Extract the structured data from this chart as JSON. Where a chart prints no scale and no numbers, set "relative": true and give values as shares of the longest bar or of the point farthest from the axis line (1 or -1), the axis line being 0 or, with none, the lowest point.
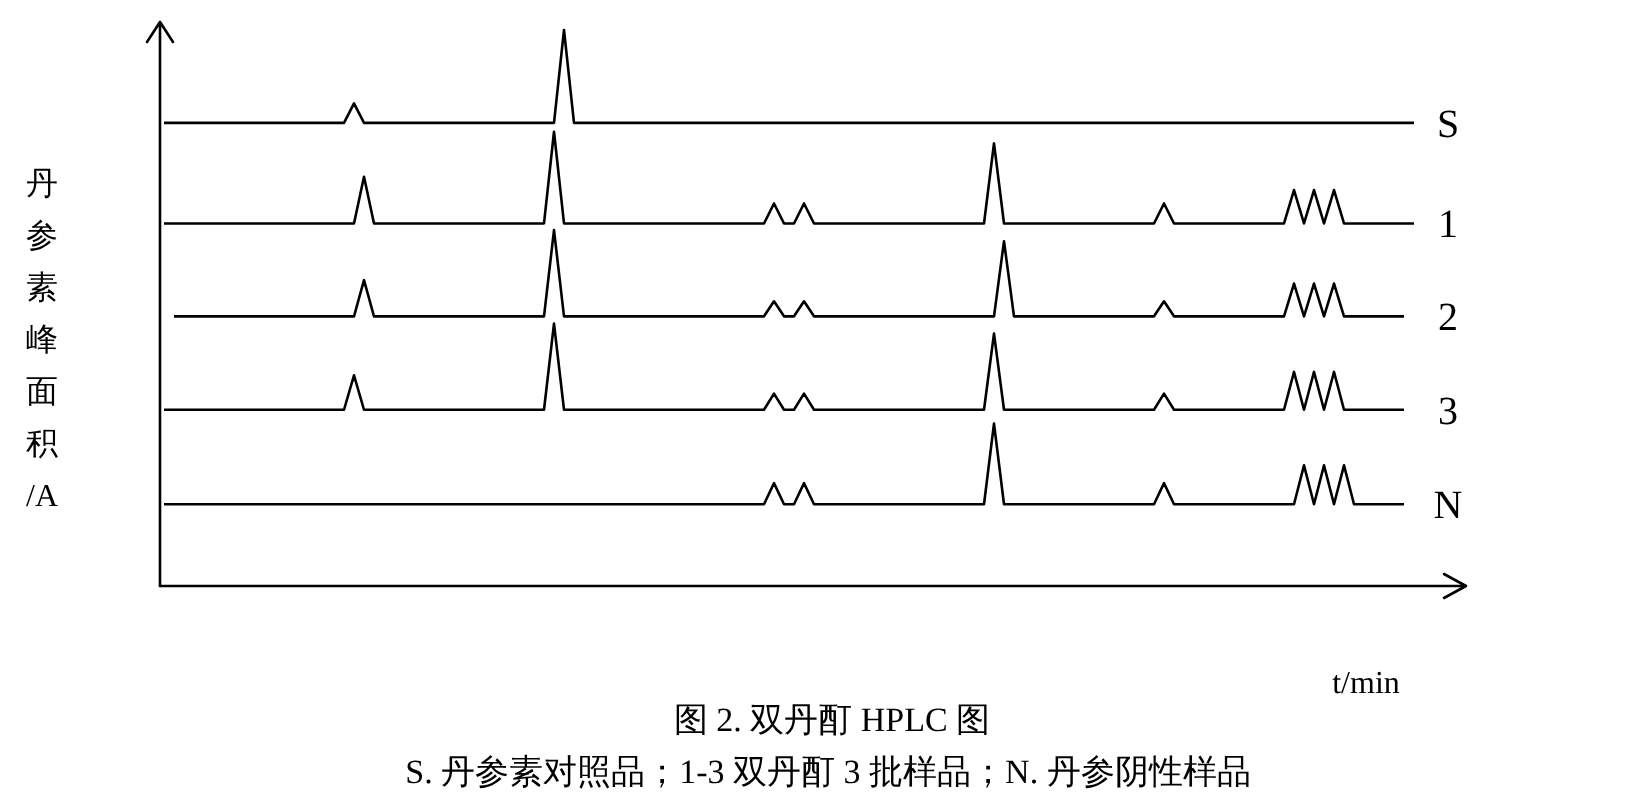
{
  "chart_data": {
    "type": "line",
    "relative": true,
    "title": "图 2. 双丹酊 HPLC 图",
    "xlabel": "t/min",
    "ylabel": "丹参素峰面积/A",
    "annotations": [
      "S. 丹参素对照品；1-3 双丹酊 3 批样品；N. 丹参阴性样品"
    ],
    "categories": [
      null,
      null,
      null,
      null,
      null,
      null,
      null,
      null,
      null,
      null,
      null,
      null,
      null,
      null,
      null,
      null,
      null,
      null,
      null,
      null,
      null,
      null,
      null,
      null,
      null,
      null,
      null,
      null,
      null,
      null,
      null,
      null,
      null,
      null,
      null,
      null,
      null,
      null,
      null,
      null,
      null,
      null,
      null,
      null,
      null,
      null,
      null,
      null,
      null,
      null,
      null,
      null,
      null,
      null,
      null,
      null,
      null,
      null,
      null,
      null,
      null,
      null,
      null,
      null,
      null,
      null,
      null,
      null,
      null,
      null,
      null,
      null,
      null,
      null,
      null,
      null,
      null,
      null,
      null,
      null,
      null,
      null,
      null,
      null,
      null,
      null,
      null,
      null,
      null,
      null,
      null,
      null,
      null,
      null,
      null,
      null,
      null,
      null,
      null,
      null,
      null,
      null,
      null,
      null,
      null,
      null,
      null,
      null,
      null,
      null,
      null,
      null,
      null,
      null,
      null,
      null,
      null,
      null,
      null,
      null,
      null,
      null,
      null,
      null,
      null,
      null
    ],
    "series": [
      {
        "name": "S",
        "color": "#000000",
        "values": [
          0.833,
          0.833,
          0.833,
          0.833,
          0.833,
          0.833,
          0.833,
          0.833,
          0.833,
          0.833,
          0.833,
          0.833,
          0.833,
          0.833,
          0.833,
          0.833,
          0.833,
          0.833,
          0.833,
          0.868,
          0.833,
          0.833,
          0.833,
          0.833,
          0.833,
          0.833,
          0.833,
          0.833,
          0.833,
          0.833,
          0.833,
          0.833,
          0.833,
          0.833,
          0.833,
          0.833,
          0.833,
          0.833,
          0.833,
          0.833,
          1,
          0.833,
          0.833,
          0.833,
          0.833,
          0.833,
          0.833,
          0.833,
          0.833,
          0.833,
          0.833,
          0.833,
          0.833,
          0.833,
          0.833,
          0.833,
          0.833,
          0.833,
          0.833,
          0.833,
          0.833,
          0.833,
          0.833,
          0.833,
          0.833,
          0.833,
          0.833,
          0.833,
          0.833,
          0.833,
          0.833,
          0.833,
          0.833,
          0.833,
          0.833,
          0.833,
          0.833,
          0.833,
          0.833,
          0.833,
          0.833,
          0.833,
          0.833,
          0.833,
          0.833,
          0.833,
          0.833,
          0.833,
          0.833,
          0.833,
          0.833,
          0.833,
          0.833,
          0.833,
          0.833,
          0.833,
          0.833,
          0.833,
          0.833,
          0.833,
          0.833,
          0.833,
          0.833,
          0.833,
          0.833,
          0.833,
          0.833,
          0.833,
          0.833,
          0.833,
          0.833,
          0.833,
          0.833,
          0.833,
          0.833,
          0.833,
          0.833,
          0.833,
          0.833,
          0.833,
          0.833,
          0.833,
          0.833,
          0.833,
          0.833,
          0.833
        ]
      },
      {
        "name": "1",
        "color": "#000000",
        "values": [
          0.652,
          0.652,
          0.652,
          0.652,
          0.652,
          0.652,
          0.652,
          0.652,
          0.652,
          0.652,
          0.652,
          0.652,
          0.652,
          0.652,
          0.652,
          0.652,
          0.652,
          0.652,
          0.652,
          0.652,
          0.736,
          0.652,
          0.652,
          0.652,
          0.652,
          0.652,
          0.652,
          0.652,
          0.652,
          0.652,
          0.652,
          0.652,
          0.652,
          0.652,
          0.652,
          0.652,
          0.652,
          0.652,
          0.652,
          0.817,
          0.652,
          0.652,
          0.652,
          0.652,
          0.652,
          0.652,
          0.652,
          0.652,
          0.652,
          0.652,
          0.652,
          0.652,
          0.652,
          0.652,
          0.652,
          0.652,
          0.652,
          0.652,
          0.652,
          0.652,
          0.652,
          0.688,
          0.652,
          0.652,
          0.688,
          0.652,
          0.652,
          0.652,
          0.652,
          0.652,
          0.652,
          0.652,
          0.652,
          0.652,
          0.652,
          0.652,
          0.652,
          0.652,
          0.652,
          0.652,
          0.652,
          0.652,
          0.652,
          0.796,
          0.652,
          0.652,
          0.652,
          0.652,
          0.652,
          0.652,
          0.652,
          0.652,
          0.652,
          0.652,
          0.652,
          0.652,
          0.652,
          0.652,
          0.652,
          0.652,
          0.688,
          0.652,
          0.652,
          0.652,
          0.652,
          0.652,
          0.652,
          0.652,
          0.652,
          0.652,
          0.652,
          0.652,
          0.652,
          0.712,
          0.652,
          0.712,
          0.652,
          0.712,
          0.652,
          0.652,
          0.652,
          0.652,
          0.652,
          0.652,
          0.652,
          0.652
        ]
      },
      {
        "name": "2",
        "color": "#000000",
        "values": [
          null,
          0.485,
          0.485,
          0.485,
          0.485,
          0.485,
          0.485,
          0.485,
          0.485,
          0.485,
          0.485,
          0.485,
          0.485,
          0.485,
          0.485,
          0.485,
          0.485,
          0.485,
          0.485,
          0.485,
          0.55,
          0.485,
          0.485,
          0.485,
          0.485,
          0.485,
          0.485,
          0.485,
          0.485,
          0.485,
          0.485,
          0.485,
          0.485,
          0.485,
          0.485,
          0.485,
          0.485,
          0.485,
          0.485,
          0.64,
          0.485,
          0.485,
          0.485,
          0.485,
          0.485,
          0.485,
          0.485,
          0.485,
          0.485,
          0.485,
          0.485,
          0.485,
          0.485,
          0.485,
          0.485,
          0.485,
          0.485,
          0.485,
          0.485,
          0.485,
          0.485,
          0.512,
          0.485,
          0.485,
          0.512,
          0.485,
          0.485,
          0.485,
          0.485,
          0.485,
          0.485,
          0.485,
          0.485,
          0.485,
          0.485,
          0.485,
          0.485,
          0.485,
          0.485,
          0.485,
          0.485,
          0.485,
          0.485,
          0.485,
          0.62,
          0.485,
          0.485,
          0.485,
          0.485,
          0.485,
          0.485,
          0.485,
          0.485,
          0.485,
          0.485,
          0.485,
          0.485,
          0.485,
          0.485,
          0.485,
          0.512,
          0.485,
          0.485,
          0.485,
          0.485,
          0.485,
          0.485,
          0.485,
          0.485,
          0.485,
          0.485,
          0.485,
          0.485,
          0.544,
          0.485,
          0.544,
          0.485,
          0.544,
          0.485,
          0.485,
          0.485,
          0.485,
          0.485,
          0.485,
          0.485,
          null
        ]
      },
      {
        "name": "3",
        "color": "#000000",
        "values": [
          0.317,
          0.317,
          0.317,
          0.317,
          0.317,
          0.317,
          0.317,
          0.317,
          0.317,
          0.317,
          0.317,
          0.317,
          0.317,
          0.317,
          0.317,
          0.317,
          0.317,
          0.317,
          0.317,
          0.379,
          0.317,
          0.317,
          0.317,
          0.317,
          0.317,
          0.317,
          0.317,
          0.317,
          0.317,
          0.317,
          0.317,
          0.317,
          0.317,
          0.317,
          0.317,
          0.317,
          0.317,
          0.317,
          0.317,
          0.472,
          0.317,
          0.317,
          0.317,
          0.317,
          0.317,
          0.317,
          0.317,
          0.317,
          0.317,
          0.317,
          0.317,
          0.317,
          0.317,
          0.317,
          0.317,
          0.317,
          0.317,
          0.317,
          0.317,
          0.317,
          0.317,
          0.346,
          0.317,
          0.317,
          0.346,
          0.317,
          0.317,
          0.317,
          0.317,
          0.317,
          0.317,
          0.317,
          0.317,
          0.317,
          0.317,
          0.317,
          0.317,
          0.317,
          0.317,
          0.317,
          0.317,
          0.317,
          0.317,
          0.454,
          0.317,
          0.317,
          0.317,
          0.317,
          0.317,
          0.317,
          0.317,
          0.317,
          0.317,
          0.317,
          0.317,
          0.317,
          0.317,
          0.317,
          0.317,
          0.317,
          0.346,
          0.317,
          0.317,
          0.317,
          0.317,
          0.317,
          0.317,
          0.317,
          0.317,
          0.317,
          0.317,
          0.317,
          0.317,
          0.385,
          0.317,
          0.385,
          0.317,
          0.385,
          0.317,
          0.317,
          0.317,
          0.317,
          0.317,
          0.317,
          0.317,
          null
        ]
      },
      {
        "name": "N",
        "color": "#000000",
        "values": [
          0.147,
          0.147,
          0.147,
          0.147,
          0.147,
          0.147,
          0.147,
          0.147,
          0.147,
          0.147,
          0.147,
          0.147,
          0.147,
          0.147,
          0.147,
          0.147,
          0.147,
          0.147,
          0.147,
          0.147,
          0.147,
          0.147,
          0.147,
          0.147,
          0.147,
          0.147,
          0.147,
          0.147,
          0.147,
          0.147,
          0.147,
          0.147,
          0.147,
          0.147,
          0.147,
          0.147,
          0.147,
          0.147,
          0.147,
          0.147,
          0.147,
          0.147,
          0.147,
          0.147,
          0.147,
          0.147,
          0.147,
          0.147,
          0.147,
          0.147,
          0.147,
          0.147,
          0.147,
          0.147,
          0.147,
          0.147,
          0.147,
          0.147,
          0.147,
          0.147,
          0.147,
          0.185,
          0.147,
          0.147,
          0.185,
          0.147,
          0.147,
          0.147,
          0.147,
          0.147,
          0.147,
          0.147,
          0.147,
          0.147,
          0.147,
          0.147,
          0.147,
          0.147,
          0.147,
          0.147,
          0.147,
          0.147,
          0.147,
          0.292,
          0.147,
          0.147,
          0.147,
          0.147,
          0.147,
          0.147,
          0.147,
          0.147,
          0.147,
          0.147,
          0.147,
          0.147,
          0.147,
          0.147,
          0.147,
          0.147,
          0.185,
          0.147,
          0.147,
          0.147,
          0.147,
          0.147,
          0.147,
          0.147,
          0.147,
          0.147,
          0.147,
          0.147,
          0.147,
          0.147,
          0.217,
          0.147,
          0.217,
          0.147,
          0.217,
          0.147,
          0.147,
          0.147,
          0.147,
          0.147,
          0.147,
          null
        ]
      }
    ]
  }
}
